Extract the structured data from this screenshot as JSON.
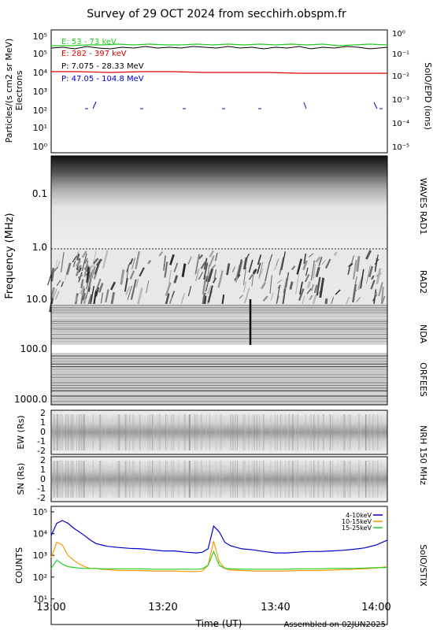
{
  "title": "Survey of 29 OCT 2024 from secchirh.obspm.fr",
  "footer": {
    "assembled": "Assembled on 02JUN2025",
    "xlabel": "Time (UT)"
  },
  "x_ticks": [
    "13:00",
    "13:20",
    "13:40",
    "14:00"
  ],
  "colors": {
    "green": "#22cc22",
    "red": "#dd0000",
    "blue": "#0000cc",
    "orange": "#ff9900",
    "black": "#000000"
  },
  "panel_epd": {
    "ylabel_left": "Particles/(s cm2 sr MeV)",
    "ylabel_left2": "Electrons",
    "ylabel_right": "SolO/EPD  (ions)",
    "yticks_left": [
      "10⁵",
      "10⁵",
      "10⁴",
      "10³",
      "10²",
      "10¹",
      "10⁰"
    ],
    "yticks_right": [
      "10⁰",
      "10⁻¹",
      "10⁻²",
      "10⁻³",
      "10⁻⁴",
      "10⁻⁵"
    ],
    "legend": [
      {
        "label": "E: 53 - 73 keV",
        "color": "#22cc22"
      },
      {
        "label": "E: 282 - 397 keV",
        "color": "#dd0000"
      },
      {
        "label": "P: 7.075 - 28.33 MeV",
        "color": "#000000"
      },
      {
        "label": "P: 47.05 - 104.8 MeV",
        "color": "#0000cc"
      }
    ]
  },
  "panel_radio": {
    "ylabel": "Frequency (MHz)",
    "yticks": [
      "0.1",
      "1.0",
      "10.0",
      "100.0",
      "1000.0"
    ],
    "labels_right": [
      "WAVES RAD1",
      "RAD2",
      "NDA",
      "ORFEES"
    ]
  },
  "panel_nrh": {
    "label_right": "NRH  150 MHz",
    "ew_label": "EW (Rs)",
    "sn_label": "SN (Rs)",
    "yticks": [
      "2",
      "1",
      "0",
      "-1",
      "-2"
    ]
  },
  "chart_data": {
    "type": "line",
    "title": "Survey of 29 OCT 2024 from secchirh.obspm.fr",
    "xlabel": "Time (UT)",
    "ylabel": "COUNTS",
    "yscale": "log",
    "xlim": [
      "13:00",
      "14:00"
    ],
    "ylim": [
      1,
      100000
    ],
    "yticks": [
      "10⁵",
      "10⁴",
      "10³",
      "10²",
      "10¹"
    ],
    "instrument": "SolO/STIX",
    "x": [
      0,
      1,
      2,
      3,
      4,
      5,
      6,
      7,
      8,
      9,
      10,
      12,
      14,
      16,
      18,
      20,
      22,
      24,
      26,
      27,
      28,
      29,
      30,
      31,
      32,
      34,
      36,
      38,
      40,
      42,
      44,
      46,
      48,
      50,
      52,
      54,
      56,
      58,
      60
    ],
    "series": [
      {
        "name": "4-10keV",
        "color": "#0000cc",
        "values": [
          8000,
          30000,
          40000,
          30000,
          18000,
          12000,
          8000,
          5000,
          3500,
          3000,
          2600,
          2300,
          2100,
          2000,
          1800,
          1600,
          1600,
          1400,
          1300,
          1400,
          2000,
          22000,
          12000,
          4000,
          2800,
          2000,
          1800,
          1500,
          1300,
          1300,
          1400,
          1500,
          1500,
          1600,
          1700,
          1900,
          2200,
          3000,
          5000
        ]
      },
      {
        "name": "10-15keV",
        "color": "#ff9900",
        "values": [
          800,
          4000,
          3000,
          1000,
          600,
          400,
          300,
          250,
          250,
          230,
          220,
          200,
          200,
          200,
          190,
          190,
          190,
          180,
          180,
          190,
          350,
          4500,
          500,
          250,
          210,
          200,
          190,
          190,
          190,
          190,
          200,
          200,
          200,
          210,
          220,
          230,
          240,
          260,
          300
        ]
      },
      {
        "name": "15-25keV",
        "color": "#22cc22",
        "values": [
          250,
          600,
          400,
          300,
          280,
          260,
          250,
          250,
          250,
          240,
          240,
          240,
          240,
          240,
          230,
          230,
          230,
          230,
          230,
          240,
          350,
          1500,
          350,
          250,
          240,
          230,
          230,
          230,
          230,
          230,
          240,
          240,
          240,
          250,
          250,
          250,
          260,
          270,
          280
        ]
      }
    ]
  }
}
